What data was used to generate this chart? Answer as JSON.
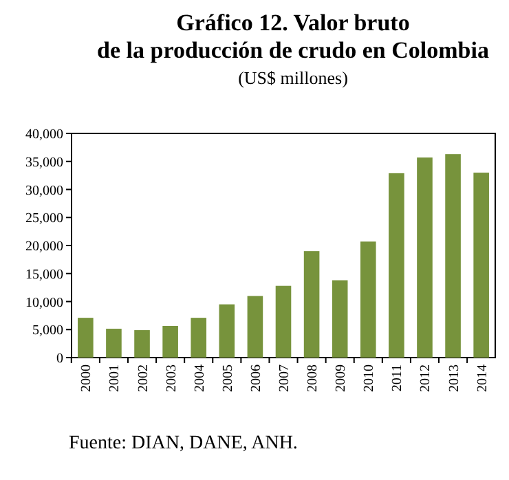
{
  "chart_data": {
    "type": "bar",
    "title": "Gráfico 12. Valor bruto de la producción de crudo en Colombia",
    "subtitle": "(US$ millones)",
    "categories": [
      "2000",
      "2001",
      "2002",
      "2003",
      "2004",
      "2005",
      "2006",
      "2007",
      "2008",
      "2009",
      "2010",
      "2011",
      "2012",
      "2013",
      "2014"
    ],
    "values": [
      7100,
      5150,
      4900,
      5650,
      7100,
      9500,
      11000,
      12800,
      19000,
      13800,
      20700,
      32900,
      35700,
      36300,
      33000
    ],
    "color": "#77933c",
    "ylim": [
      0,
      40000
    ],
    "yticks": [
      {
        "value": 0,
        "label": "0"
      },
      {
        "value": 5000,
        "label": "5,000"
      },
      {
        "value": 10000,
        "label": "10,000"
      },
      {
        "value": 15000,
        "label": "15,000"
      },
      {
        "value": 20000,
        "label": "20,000"
      },
      {
        "value": 25000,
        "label": "25,000"
      },
      {
        "value": 30000,
        "label": "30,000"
      },
      {
        "value": 35000,
        "label": "35,000"
      },
      {
        "value": 40000,
        "label": "40,000"
      }
    ],
    "annotations": [
      "Fuente: DIAN, DANE, ANH."
    ]
  }
}
